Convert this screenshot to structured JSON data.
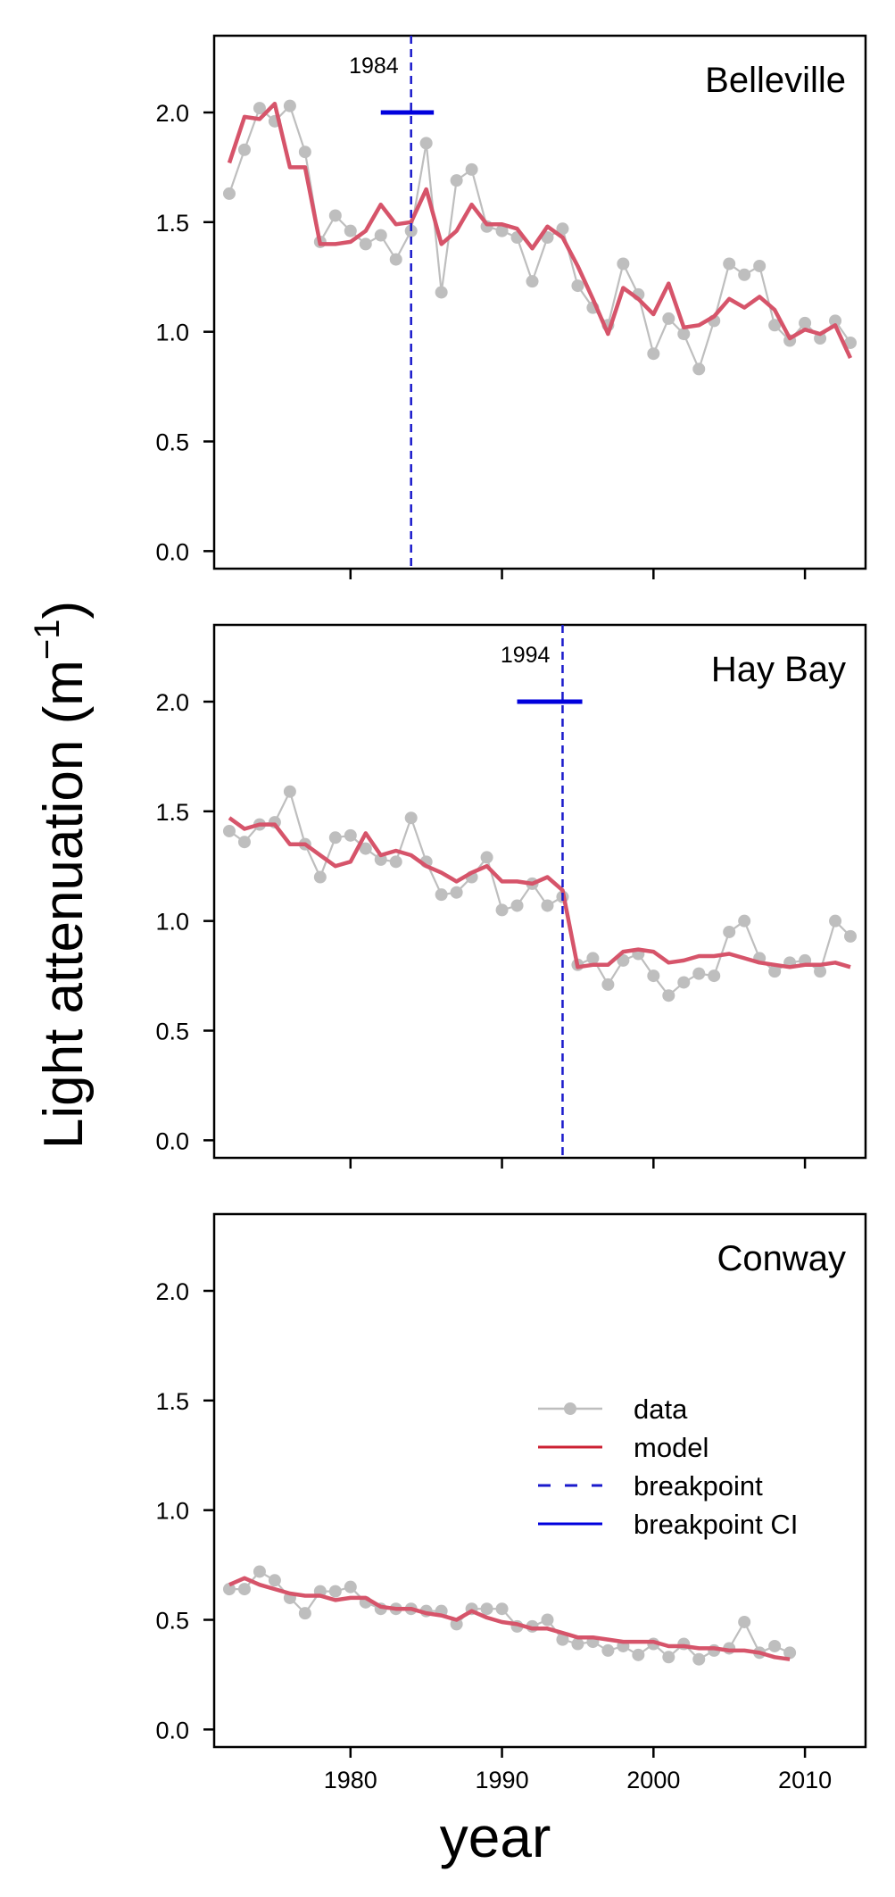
{
  "chart_data": {
    "type": "line",
    "shared": {
      "xlabel": "year",
      "ylabel_main": "Light attenuation (m",
      "ylabel_sup": "−1",
      "ylabel_close": ")",
      "xlim": [
        1971,
        2014
      ],
      "ylim": [
        -0.08,
        2.35
      ],
      "xticks": [
        1980,
        1990,
        2000,
        2010
      ],
      "yticks": [
        0.0,
        0.5,
        1.0,
        1.5,
        2.0
      ],
      "ytick_labels": [
        "0.0",
        "0.5",
        "1.0",
        "1.5",
        "2.0"
      ],
      "colors": {
        "data": "#bebebe",
        "model": "#d6546a",
        "breakpoint": "#1a1acc",
        "breakpoint_ci": "#0000dd"
      }
    },
    "legend": {
      "location": "Conway panel, right",
      "items": [
        {
          "key": "data",
          "label": "data"
        },
        {
          "key": "model",
          "label": "model"
        },
        {
          "key": "breakpoint",
          "label": "breakpoint"
        },
        {
          "key": "breakpoint_ci",
          "label": "breakpoint CI"
        }
      ]
    },
    "panels": [
      {
        "title": "Belleville",
        "breakpoint": 1984,
        "breakpoint_label": "1984",
        "ci": [
          1982,
          1985.5
        ],
        "ci_y": 2.0,
        "data_x": [
          1972,
          1973,
          1974,
          1975,
          1976,
          1977,
          1978,
          1979,
          1980,
          1981,
          1982,
          1983,
          1984,
          1985,
          1986,
          1987,
          1988,
          1989,
          1990,
          1991,
          1992,
          1993,
          1994,
          1995,
          1996,
          1997,
          1998,
          1999,
          2000,
          2001,
          2002,
          2003,
          2004,
          2005,
          2006,
          2007,
          2008,
          2009,
          2010,
          2011,
          2012,
          2013
        ],
        "data_y": [
          1.63,
          1.83,
          2.02,
          1.96,
          2.03,
          1.82,
          1.41,
          1.53,
          1.46,
          1.4,
          1.44,
          1.33,
          1.46,
          1.86,
          1.18,
          1.69,
          1.74,
          1.48,
          1.46,
          1.43,
          1.23,
          1.43,
          1.47,
          1.21,
          1.11,
          1.03,
          1.31,
          1.17,
          0.9,
          1.06,
          0.99,
          0.83,
          1.05,
          1.31,
          1.26,
          1.3,
          1.03,
          0.96,
          1.04,
          0.97,
          1.05,
          0.95
        ],
        "model_x": [
          1972,
          1973,
          1974,
          1975,
          1976,
          1977,
          1978,
          1979,
          1980,
          1981,
          1982,
          1983,
          1984,
          1985,
          1986,
          1987,
          1988,
          1989,
          1990,
          1991,
          1992,
          1993,
          1994,
          1995,
          1996,
          1997,
          1998,
          1999,
          2000,
          2001,
          2002,
          2003,
          2004,
          2005,
          2006,
          2007,
          2008,
          2009,
          2010,
          2011,
          2012,
          2013
        ],
        "model_y": [
          1.77,
          1.98,
          1.97,
          2.04,
          1.75,
          1.75,
          1.4,
          1.4,
          1.41,
          1.46,
          1.58,
          1.49,
          1.5,
          1.65,
          1.4,
          1.46,
          1.58,
          1.49,
          1.49,
          1.47,
          1.38,
          1.48,
          1.43,
          1.3,
          1.15,
          0.99,
          1.2,
          1.15,
          1.08,
          1.22,
          1.02,
          1.03,
          1.07,
          1.15,
          1.11,
          1.16,
          1.1,
          0.97,
          1.01,
          0.99,
          1.03,
          0.88
        ]
      },
      {
        "title": "Hay Bay",
        "breakpoint": 1994,
        "breakpoint_label": "1994",
        "ci": [
          1991,
          1995.3
        ],
        "ci_y": 2.0,
        "data_x": [
          1972,
          1973,
          1974,
          1975,
          1976,
          1977,
          1978,
          1979,
          1980,
          1981,
          1982,
          1983,
          1984,
          1985,
          1986,
          1987,
          1988,
          1989,
          1990,
          1991,
          1992,
          1993,
          1994,
          1995,
          1996,
          1997,
          1998,
          1999,
          2000,
          2001,
          2002,
          2003,
          2004,
          2005,
          2006,
          2007,
          2008,
          2009,
          2010,
          2011,
          2012,
          2013
        ],
        "data_y": [
          1.41,
          1.36,
          1.44,
          1.45,
          1.59,
          1.35,
          1.2,
          1.38,
          1.39,
          1.33,
          1.28,
          1.27,
          1.47,
          1.27,
          1.12,
          1.13,
          1.2,
          1.29,
          1.05,
          1.07,
          1.17,
          1.07,
          1.11,
          0.8,
          0.83,
          0.71,
          0.82,
          0.85,
          0.75,
          0.66,
          0.72,
          0.76,
          0.75,
          0.95,
          1.0,
          0.83,
          0.77,
          0.81,
          0.82,
          0.77,
          1.0,
          0.93
        ],
        "model_x": [
          1972,
          1973,
          1974,
          1975,
          1976,
          1977,
          1978,
          1979,
          1980,
          1981,
          1982,
          1983,
          1984,
          1985,
          1986,
          1987,
          1988,
          1989,
          1990,
          1991,
          1992,
          1993,
          1994,
          1995,
          1996,
          1997,
          1998,
          1999,
          2000,
          2001,
          2002,
          2003,
          2004,
          2005,
          2006,
          2007,
          2008,
          2009,
          2010,
          2011,
          2012,
          2013
        ],
        "model_y": [
          1.47,
          1.42,
          1.44,
          1.44,
          1.35,
          1.35,
          1.3,
          1.25,
          1.27,
          1.4,
          1.3,
          1.32,
          1.3,
          1.25,
          1.22,
          1.18,
          1.22,
          1.25,
          1.18,
          1.18,
          1.17,
          1.2,
          1.14,
          0.79,
          0.8,
          0.8,
          0.86,
          0.87,
          0.86,
          0.81,
          0.82,
          0.84,
          0.84,
          0.85,
          0.83,
          0.81,
          0.8,
          0.79,
          0.8,
          0.8,
          0.81,
          0.79
        ]
      },
      {
        "title": "Conway",
        "data_x": [
          1972,
          1973,
          1974,
          1975,
          1976,
          1977,
          1978,
          1979,
          1980,
          1981,
          1982,
          1983,
          1984,
          1985,
          1986,
          1987,
          1988,
          1989,
          1990,
          1991,
          1992,
          1993,
          1994,
          1995,
          1996,
          1997,
          1998,
          1999,
          2000,
          2001,
          2002,
          2003,
          2004,
          2005,
          2006,
          2007,
          2008,
          2009
        ],
        "data_y": [
          0.64,
          0.64,
          0.72,
          0.68,
          0.6,
          0.53,
          0.63,
          0.63,
          0.65,
          0.58,
          0.55,
          0.55,
          0.55,
          0.54,
          0.54,
          0.48,
          0.55,
          0.55,
          0.55,
          0.47,
          0.47,
          0.5,
          0.41,
          0.39,
          0.4,
          0.36,
          0.38,
          0.34,
          0.39,
          0.33,
          0.39,
          0.32,
          0.36,
          0.37,
          0.49,
          0.35,
          0.38,
          0.35
        ],
        "model_x": [
          1972,
          1973,
          1974,
          1975,
          1976,
          1977,
          1978,
          1979,
          1980,
          1981,
          1982,
          1983,
          1984,
          1985,
          1986,
          1987,
          1988,
          1989,
          1990,
          1991,
          1992,
          1993,
          1994,
          1995,
          1996,
          1997,
          1998,
          1999,
          2000,
          2001,
          2002,
          2003,
          2004,
          2005,
          2006,
          2007,
          2008,
          2009
        ],
        "model_y": [
          0.66,
          0.69,
          0.66,
          0.64,
          0.62,
          0.61,
          0.61,
          0.59,
          0.6,
          0.6,
          0.56,
          0.55,
          0.55,
          0.53,
          0.52,
          0.5,
          0.54,
          0.51,
          0.49,
          0.48,
          0.46,
          0.46,
          0.44,
          0.42,
          0.42,
          0.41,
          0.4,
          0.4,
          0.4,
          0.38,
          0.38,
          0.37,
          0.37,
          0.36,
          0.36,
          0.35,
          0.33,
          0.32
        ]
      }
    ]
  }
}
